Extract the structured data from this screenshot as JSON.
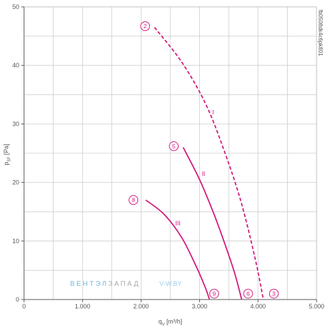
{
  "chart_data": {
    "type": "line",
    "xlabel": "qV [m³/h]",
    "ylabel": "pSF [Pa]",
    "xlim": [
      0,
      5000
    ],
    "ylim": [
      0,
      50
    ],
    "x_ticks": [
      "0",
      "1.000",
      "2.000",
      "3.000",
      "4.000",
      "5.000"
    ],
    "y_ticks": [
      "0",
      "10",
      "20",
      "30",
      "40",
      "50"
    ],
    "grid": true,
    "side_code": "fb0508dk4c6pk801",
    "series": [
      {
        "name": "I",
        "style": "dashed",
        "color": "#d4187a",
        "x": [
          2230,
          2700,
          3100,
          3400,
          3700,
          3950,
          4090
        ],
        "y": [
          46.5,
          40.5,
          33.5,
          26,
          17,
          7,
          0
        ]
      },
      {
        "name": "II",
        "style": "solid",
        "color": "#d4187a",
        "x": [
          2720,
          3000,
          3250,
          3450,
          3600,
          3720
        ],
        "y": [
          26,
          20.5,
          14.5,
          9,
          4.5,
          0
        ]
      },
      {
        "name": "III",
        "style": "solid",
        "color": "#d4187a",
        "x": [
          2080,
          2400,
          2700,
          2950,
          3100,
          3170
        ],
        "y": [
          17,
          14.5,
          10.5,
          5.5,
          2,
          0
        ]
      }
    ],
    "curve_labels": [
      {
        "text": "I",
        "x": 3230,
        "y": 32
      },
      {
        "text": "II",
        "x": 3070,
        "y": 21.5
      },
      {
        "text": "III",
        "x": 2630,
        "y": 13
      }
    ],
    "markers": [
      {
        "text": "2",
        "x": 2070,
        "y": 46.7
      },
      {
        "text": "5",
        "x": 2560,
        "y": 26.2
      },
      {
        "text": "8",
        "x": 1870,
        "y": 17
      },
      {
        "text": "9",
        "x": 3250,
        "y": 1
      },
      {
        "text": "6",
        "x": 3830,
        "y": 1
      },
      {
        "text": "3",
        "x": 4270,
        "y": 1
      }
    ],
    "watermark": {
      "part_a": "ВЕНТЭЛ",
      "part_b": "ЗАПАД",
      "part_c": "V-W.BY"
    }
  }
}
